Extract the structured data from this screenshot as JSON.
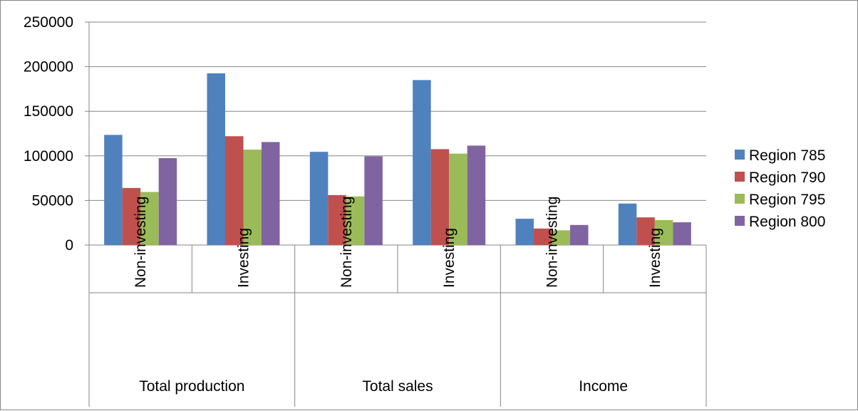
{
  "chart_data": {
    "type": "bar",
    "title": "",
    "xlabel": "",
    "ylabel": "",
    "ylim": [
      0,
      250000
    ],
    "yticks": [
      0,
      50000,
      100000,
      150000,
      200000,
      250000
    ],
    "grid": true,
    "legend_position": "right",
    "groups": [
      {
        "label": "Total production",
        "categories": [
          "Non-investing",
          "Investing"
        ]
      },
      {
        "label": "Total sales",
        "categories": [
          "Non-investing",
          "Investing"
        ]
      },
      {
        "label": "Income",
        "categories": [
          "Non-investing",
          "Investing"
        ]
      }
    ],
    "categories": [
      "Non-investing",
      "Investing",
      "Non-investing",
      "Investing",
      "Non-investing",
      "Investing"
    ],
    "series": [
      {
        "name": "Region 785",
        "color": "#4F81BD",
        "values": [
          123500,
          192500,
          104500,
          185000,
          29500,
          46500
        ]
      },
      {
        "name": "Region 790",
        "color": "#C0504D",
        "values": [
          64000,
          122000,
          56000,
          107500,
          18500,
          31000
        ]
      },
      {
        "name": "Region 795",
        "color": "#9BBB59",
        "values": [
          59500,
          107000,
          54500,
          102500,
          16500,
          28000
        ]
      },
      {
        "name": "Region 800",
        "color": "#8064A2",
        "values": [
          97500,
          115500,
          99500,
          111500,
          22500,
          25500
        ]
      }
    ]
  }
}
